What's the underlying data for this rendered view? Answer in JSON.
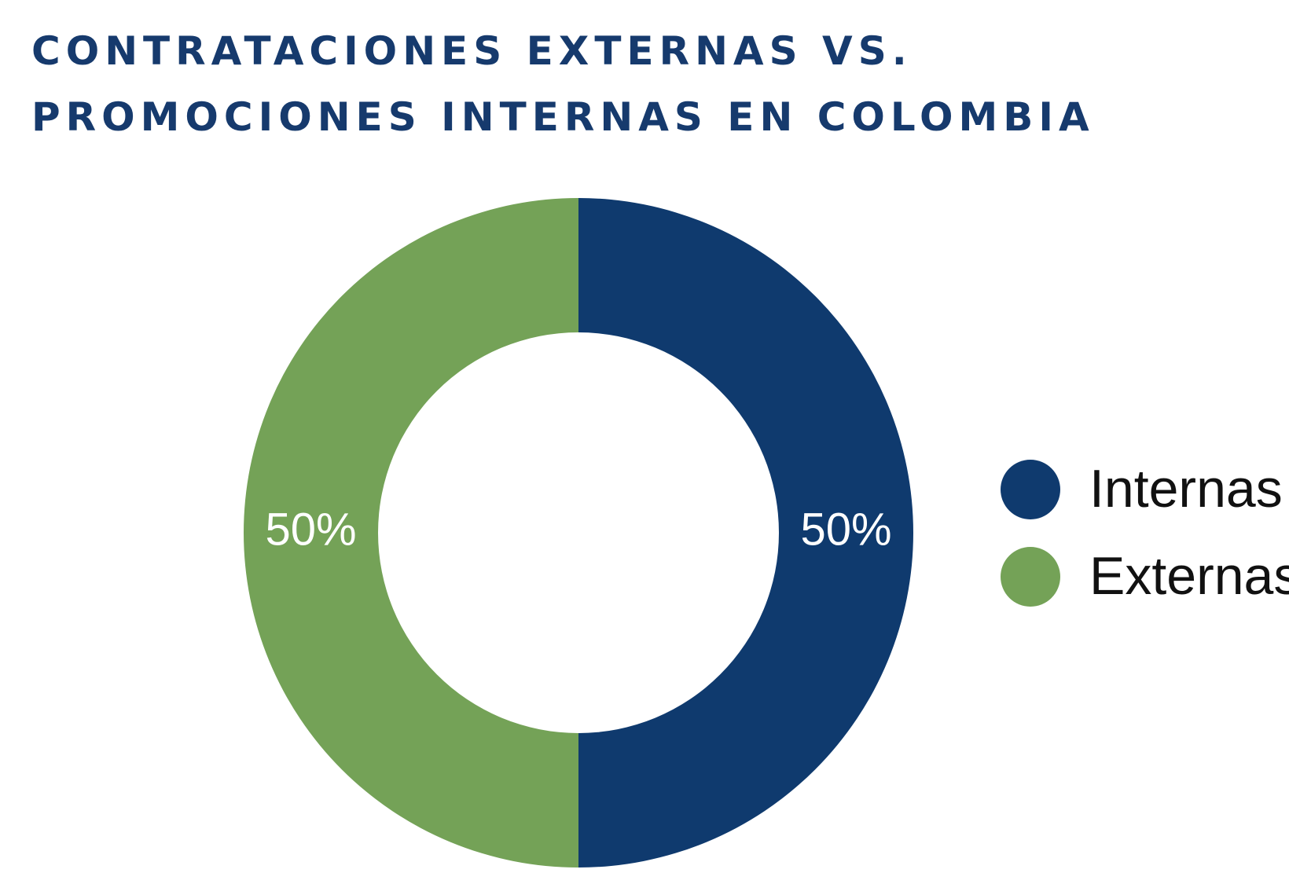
{
  "chart_data": {
    "type": "donut",
    "title": [
      "CONTRATACIONES EXTERNAS VS.",
      "PROMOCIONES INTERNAS EN COLOMBIA"
    ],
    "categories": [
      "Internas",
      "Externas"
    ],
    "values": [
      50,
      50
    ],
    "value_labels": [
      "50%",
      "50%"
    ],
    "colors": [
      "#0f3a6e",
      "#74a257"
    ],
    "legend": "right"
  }
}
